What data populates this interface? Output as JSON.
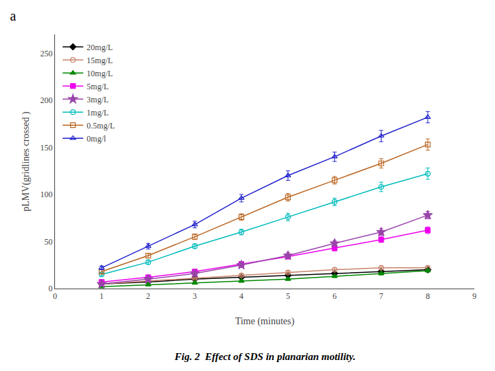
{
  "chart_data": {
    "type": "line",
    "title": "a",
    "annotations": [
      "Fig. 2  Effect of SDS in planarian motility."
    ],
    "x_label": "Time (minutes)",
    "y_label": "pLMV(gridlines crossed )",
    "x": [
      1,
      2,
      3,
      4,
      5,
      6,
      7,
      8
    ],
    "xlim": [
      0,
      9
    ],
    "xticks": [
      0,
      1,
      2,
      3,
      4,
      5,
      6,
      7,
      8,
      9
    ],
    "ylim": [
      0,
      270
    ],
    "yticks": [
      0,
      50,
      100,
      150,
      200,
      250
    ],
    "grid": false,
    "legend": "upper left",
    "series": [
      {
        "name": "20mg/L",
        "color": "#000000",
        "marker": "diamond",
        "values": [
          5,
          7,
          10,
          12,
          14,
          16,
          18,
          20
        ],
        "errors": [
          0.8,
          0.8,
          1,
          1,
          1.2,
          1.2,
          1.5,
          1.5
        ]
      },
      {
        "name": "15mg/L",
        "color": "#c8846c",
        "marker": "circle-open",
        "values": [
          5,
          8,
          11,
          14,
          17,
          20,
          22,
          22
        ],
        "errors": [
          0.8,
          1,
          1.2,
          1.5,
          1.5,
          2,
          2,
          2
        ]
      },
      {
        "name": "10mg/L",
        "color": "#008800",
        "marker": "triangle-up",
        "values": [
          2,
          4,
          6,
          8,
          10,
          13,
          16,
          19
        ],
        "errors": [
          0.5,
          0.5,
          0.8,
          1,
          1,
          1.2,
          1.5,
          1.5
        ]
      },
      {
        "name": "5mg/L",
        "color": "#ee00ee",
        "marker": "square",
        "values": [
          7,
          12,
          18,
          26,
          34,
          43,
          52,
          62
        ],
        "errors": [
          1,
          1.5,
          2,
          2,
          2.5,
          3,
          3,
          3.5
        ]
      },
      {
        "name": "3mg/L",
        "color": "#9944aa",
        "marker": "star",
        "values": [
          5,
          10,
          16,
          25,
          35,
          48,
          60,
          78
        ],
        "errors": [
          1,
          1.5,
          2,
          2.5,
          3,
          3,
          3.5,
          4
        ]
      },
      {
        "name": "1mg/L",
        "color": "#00bbbb",
        "marker": "circle-open",
        "values": [
          15,
          28,
          45,
          60,
          76,
          92,
          108,
          122
        ],
        "errors": [
          1.5,
          2,
          2.5,
          3,
          4,
          4,
          5,
          6
        ]
      },
      {
        "name": "0.5mg/L",
        "color": "#bb6622",
        "marker": "square-open",
        "values": [
          18,
          35,
          55,
          76,
          97,
          115,
          133,
          153
        ],
        "errors": [
          2,
          2.5,
          3,
          3.5,
          4,
          4,
          5,
          6
        ]
      },
      {
        "name": "0mg/l",
        "color": "#2222cc",
        "marker": "triangle-up-open",
        "values": [
          22,
          45,
          68,
          96,
          120,
          140,
          162,
          182
        ],
        "errors": [
          2,
          3,
          3.5,
          4,
          5,
          5,
          6,
          6
        ]
      }
    ]
  }
}
